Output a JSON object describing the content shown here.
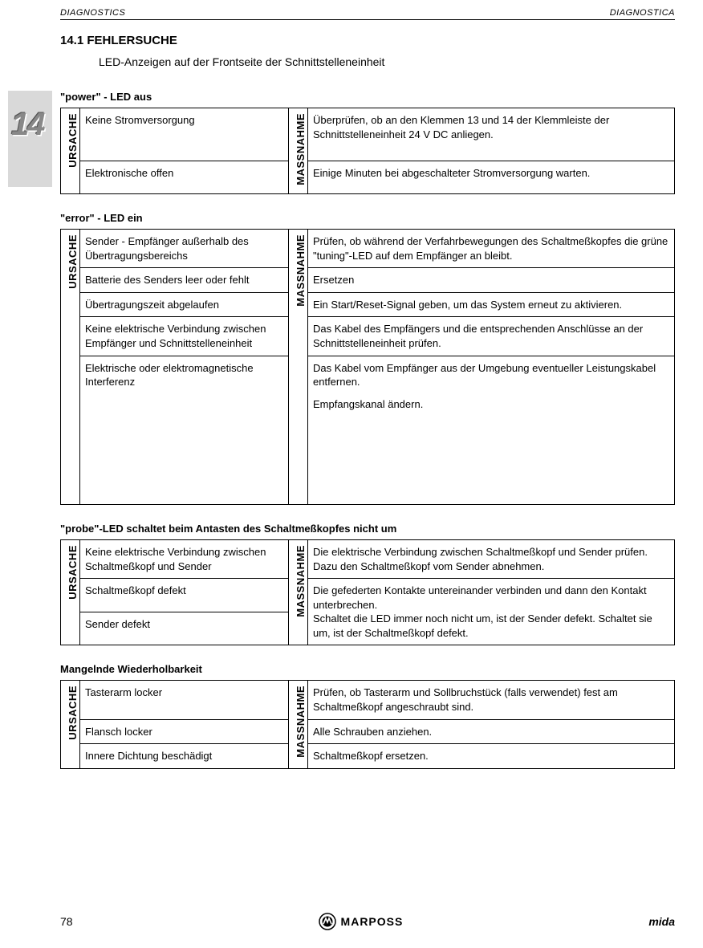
{
  "header": {
    "left": "DIAGNOSTICS",
    "right": "DIAGNOSTICA"
  },
  "chapter": "14",
  "section": {
    "title": "14.1  FEHLERSUCHE",
    "subtitle": "LED-Anzeigen auf der Frontseite der Schnittstelleneinheit"
  },
  "labels": {
    "cause": "URSACHE",
    "action": "MASSNAHME"
  },
  "blocks": [
    {
      "title": "\"power\" - LED aus",
      "rows": [
        {
          "cause": "Keine Stromversorgung",
          "action": "Überprüfen, ob an den Klemmen 13 und 14 der Klemmleiste der Schnittstelleneinheit 24 V DC anliegen."
        },
        {
          "cause": "Elektronische offen",
          "action": "Einige Minuten bei abgeschalteter Stromversorgung warten."
        }
      ]
    },
    {
      "title": "\"error\" - LED ein",
      "rows": [
        {
          "cause": "Sender - Empfänger außerhalb des Übertragungsbereichs",
          "action": "Prüfen, ob während der Verfahrbewegungen des Schaltmeßkopfes die grüne \"tuning\"-LED auf dem Empfänger an bleibt."
        },
        {
          "cause": "Batterie des Senders leer oder fehlt",
          "action": "Ersetzen"
        },
        {
          "cause": "Übertragungszeit abgelaufen",
          "action": "Ein Start/Reset-Signal geben, um das System erneut zu aktivieren."
        },
        {
          "cause": "Keine elektrische Verbindung zwischen Empfänger und Schnitt­stelleneinheit",
          "action": "Das Kabel des Empfängers und die entsprechenden Anschlüsse an der Schnittstelleneinheit prüfen."
        },
        {
          "cause": "Elektrische oder elektromagnetische Interferenz",
          "action": "Das Kabel vom Empfänger aus der Umgebung eventueller Leistungskabel entfernen.",
          "action2": "Empfangskanal ändern."
        }
      ],
      "extra_space": true
    },
    {
      "title": "\"probe\"-LED schaltet beim Antasten des Schaltmeßkopfes nicht um",
      "rows": [
        {
          "cause": "Keine elektrische Verbindung zwischen Schaltmeßkopf und Sender",
          "action": "Die elektrische Verbindung zwischen Schaltmeßkopf und Sender prüfen. Dazu den Schaltmeßkopf vom Sender abnehmen."
        },
        {
          "cause": "Schaltmeßkopf defekt",
          "action": "Die gefederten Kontakte untereinander verbinden und dann den Kontakt unterbrechen.",
          "merge_next": true
        },
        {
          "cause": "Sender defekt",
          "action": "Schaltet die LED immer noch nicht um, ist der Sender defekt. Schaltet sie um, ist der Schaltmeßkopf defekt."
        }
      ],
      "merge_last_two_actions": true
    },
    {
      "title": "Mangelnde Wiederholbarkeit",
      "rows": [
        {
          "cause": "Tasterarm locker",
          "action": "Prüfen, ob Tasterarm und Sollbruchstück (falls verwendet) fest am Schaltmeßkopf angeschraubt sind."
        },
        {
          "cause": "Flansch locker",
          "action": "Alle Schrauben anziehen."
        },
        {
          "cause": "Innere Dichtung beschädigt",
          "action": "Schaltmeßkopf ersetzen."
        }
      ]
    }
  ],
  "footer": {
    "page": "78",
    "brand": "MARPOSS",
    "product": "mida"
  }
}
